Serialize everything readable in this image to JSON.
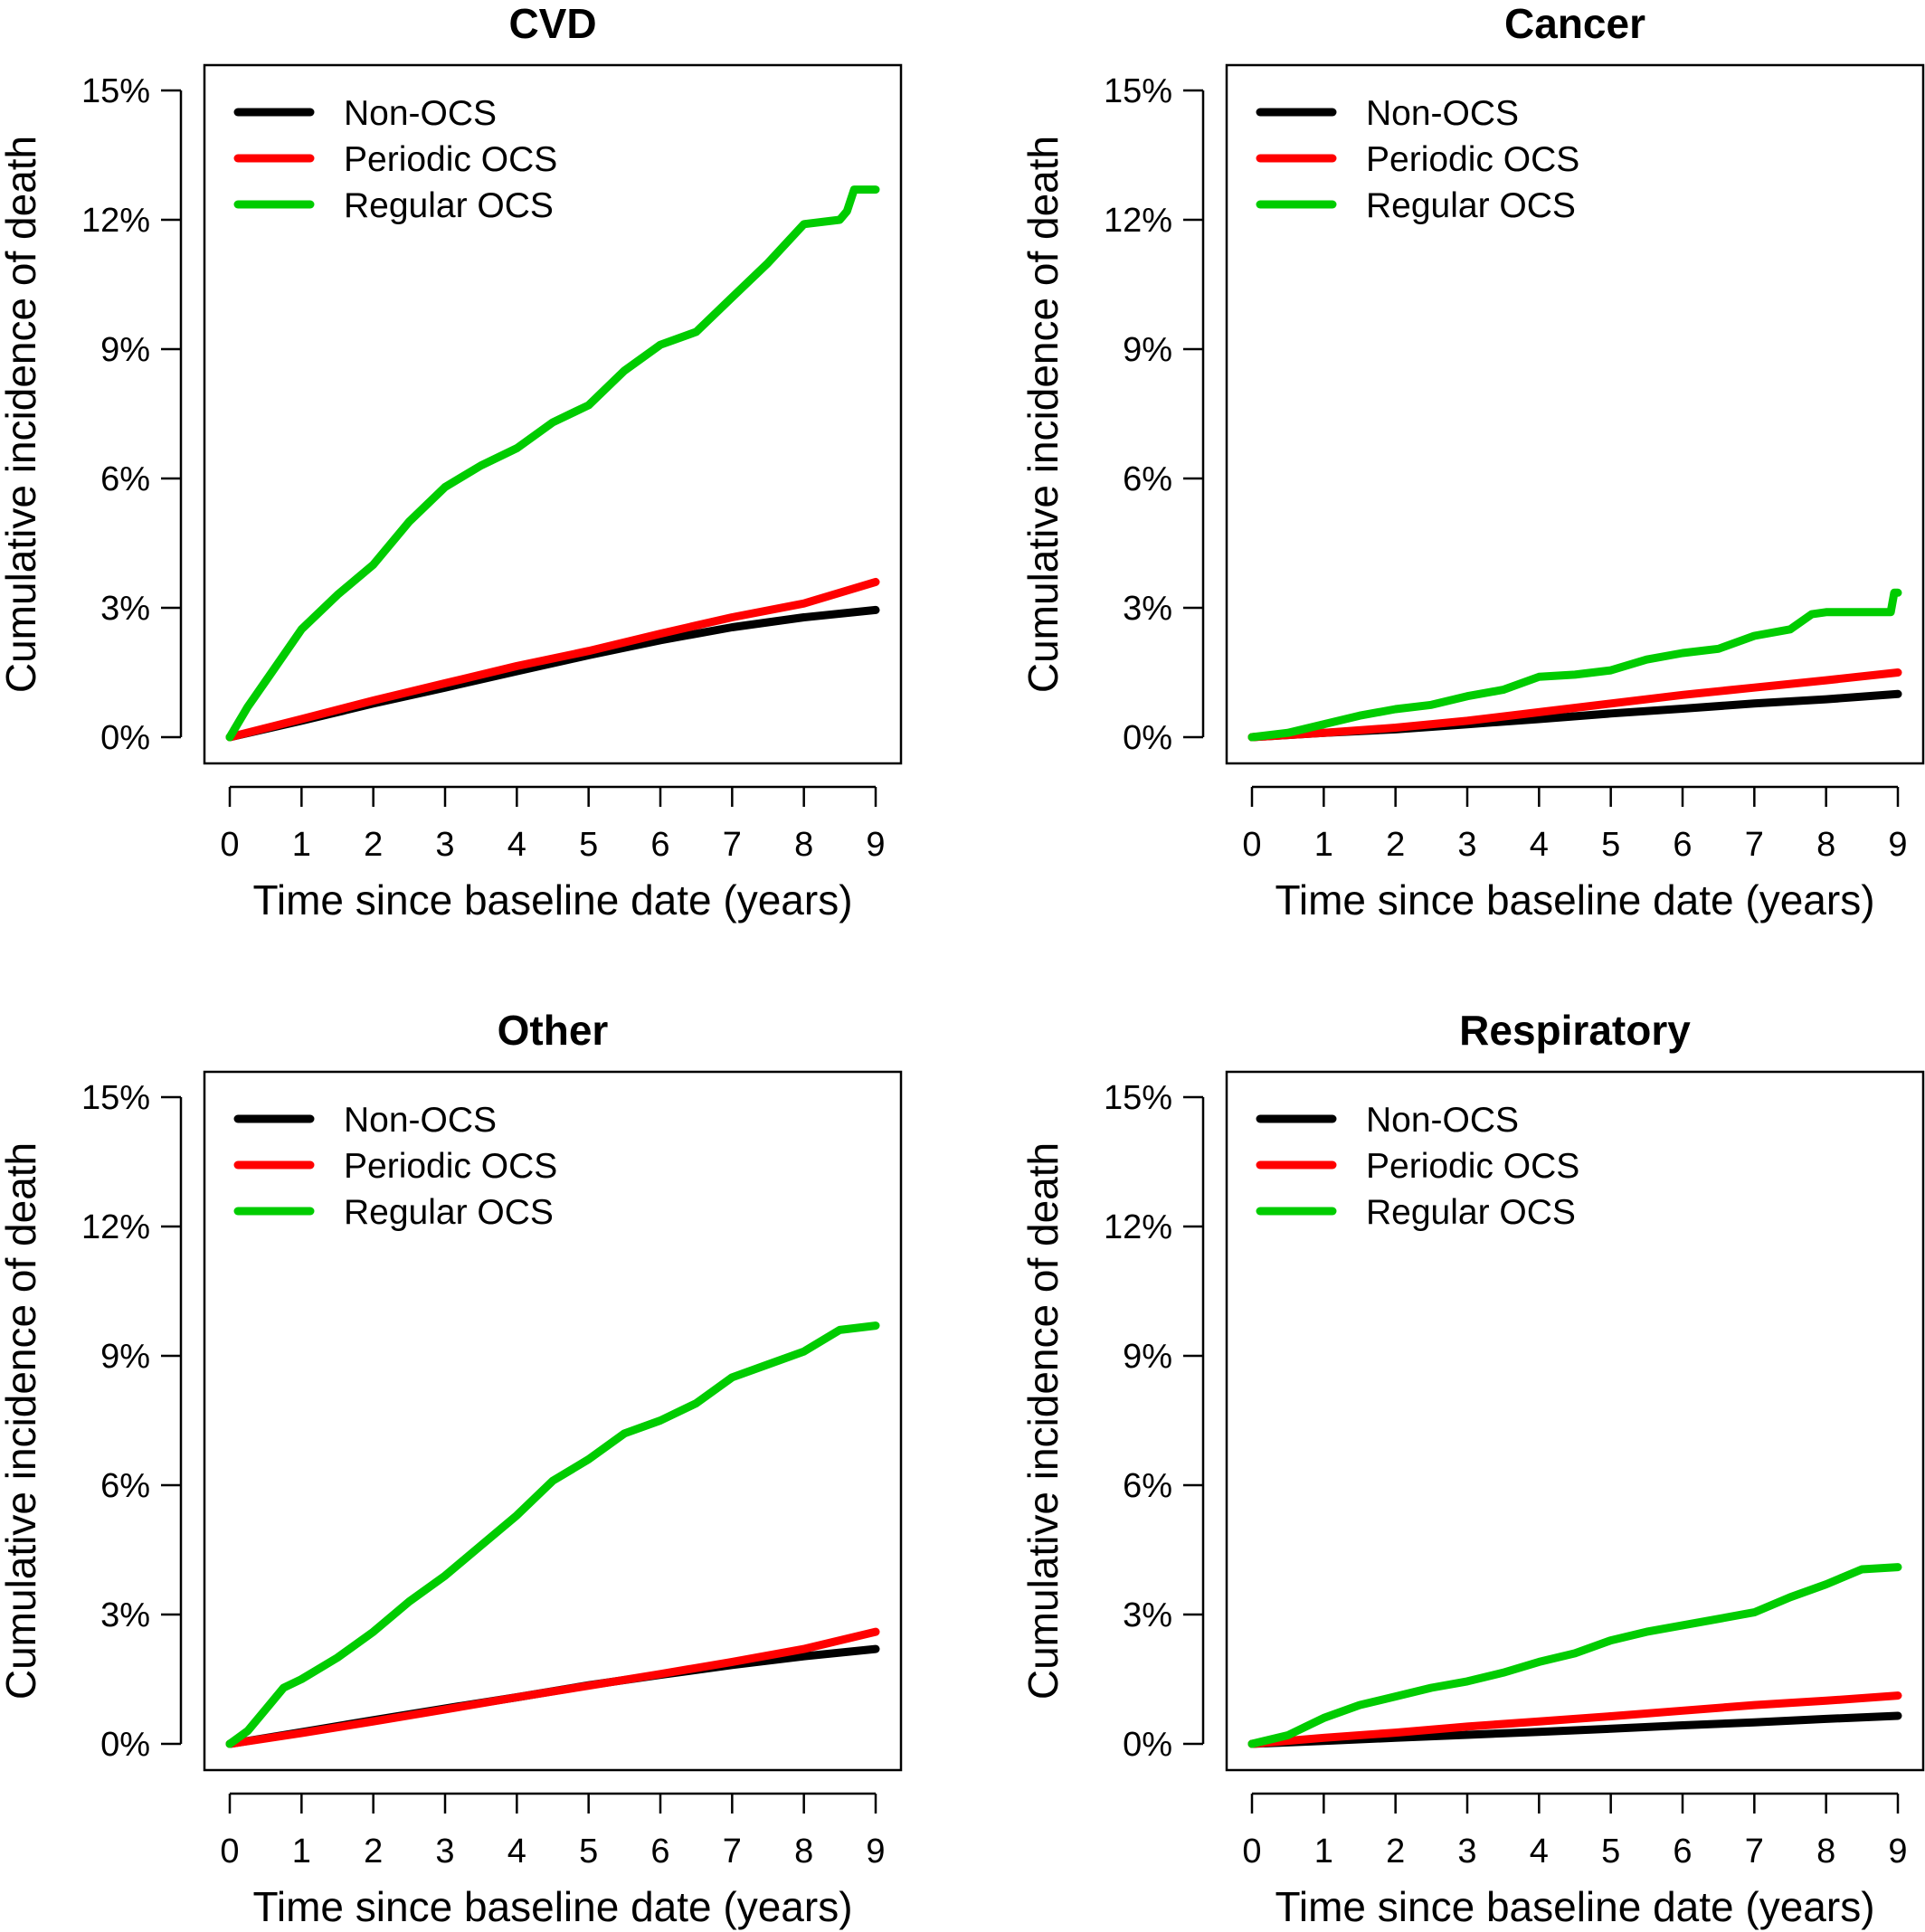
{
  "colors": {
    "Non-OCS": "#000000",
    "Periodic OCS": "#ff0000",
    "Regular OCS": "#00cc00"
  },
  "chart_data": [
    {
      "type": "line",
      "title": "CVD",
      "xlabel": "Time since baseline date (years)",
      "ylabel": "Cumulative incidence of death",
      "xlim": [
        0,
        9
      ],
      "ylim": [
        0,
        15
      ],
      "xticks": [
        "0",
        "1",
        "2",
        "3",
        "4",
        "5",
        "6",
        "7",
        "8",
        "9"
      ],
      "yticks": [
        "0%",
        "3%",
        "6%",
        "9%",
        "12%",
        "15%"
      ],
      "legend_position": "top-left",
      "legend": [
        "Non-OCS",
        "Periodic OCS",
        "Regular OCS"
      ],
      "series": [
        {
          "name": "Non-OCS",
          "x": [
            0,
            1,
            2,
            3,
            4,
            5,
            6,
            7,
            8,
            9
          ],
          "y": [
            0,
            0.38,
            0.78,
            1.15,
            1.53,
            1.9,
            2.25,
            2.55,
            2.78,
            2.95
          ]
        },
        {
          "name": "Periodic OCS",
          "x": [
            0,
            1,
            2,
            3,
            4,
            5,
            6,
            7,
            8,
            9
          ],
          "y": [
            0,
            0.42,
            0.85,
            1.25,
            1.65,
            2.0,
            2.4,
            2.78,
            3.1,
            3.6
          ]
        },
        {
          "name": "Regular OCS",
          "x": [
            0,
            0.25,
            0.5,
            0.75,
            1,
            1.5,
            2,
            2.5,
            3,
            3.5,
            4,
            4.5,
            5,
            5.5,
            6,
            6.5,
            7,
            7.5,
            8,
            8.5,
            8.6,
            8.7,
            9
          ],
          "y": [
            0,
            0.7,
            1.3,
            1.9,
            2.5,
            3.3,
            4.0,
            5.0,
            5.8,
            6.3,
            6.7,
            7.3,
            7.7,
            8.5,
            9.1,
            9.4,
            10.2,
            11.0,
            11.9,
            12.0,
            12.2,
            12.7,
            12.7
          ]
        }
      ]
    },
    {
      "type": "line",
      "title": "Cancer",
      "xlabel": "Time since baseline date (years)",
      "ylabel": "Cumulative incidence of death",
      "xlim": [
        0,
        9
      ],
      "ylim": [
        0,
        15
      ],
      "xticks": [
        "0",
        "1",
        "2",
        "3",
        "4",
        "5",
        "6",
        "7",
        "8",
        "9"
      ],
      "yticks": [
        "0%",
        "3%",
        "6%",
        "9%",
        "12%",
        "15%"
      ],
      "legend_position": "top-left",
      "legend": [
        "Non-OCS",
        "Periodic OCS",
        "Regular OCS"
      ],
      "series": [
        {
          "name": "Non-OCS",
          "x": [
            0,
            1,
            2,
            3,
            4,
            5,
            6,
            7,
            8,
            9
          ],
          "y": [
            0,
            0.1,
            0.18,
            0.3,
            0.42,
            0.55,
            0.66,
            0.78,
            0.88,
            1.0
          ]
        },
        {
          "name": "Periodic OCS",
          "x": [
            0,
            1,
            2,
            3,
            4,
            5,
            6,
            7,
            8,
            9
          ],
          "y": [
            0,
            0.1,
            0.22,
            0.38,
            0.58,
            0.78,
            0.98,
            1.15,
            1.32,
            1.5
          ]
        },
        {
          "name": "Regular OCS",
          "x": [
            0,
            0.5,
            1,
            1.5,
            2,
            2.5,
            3,
            3.5,
            4,
            4.5,
            5,
            5.5,
            6,
            6.5,
            7,
            7.5,
            7.8,
            8,
            8.5,
            8.9,
            8.95,
            9
          ],
          "y": [
            0,
            0.1,
            0.3,
            0.5,
            0.65,
            0.75,
            0.95,
            1.1,
            1.4,
            1.45,
            1.55,
            1.8,
            1.95,
            2.05,
            2.35,
            2.5,
            2.85,
            2.9,
            2.9,
            2.9,
            3.35,
            3.35
          ]
        }
      ]
    },
    {
      "type": "line",
      "title": "Other",
      "xlabel": "Time since baseline date (years)",
      "ylabel": "Cumulative incidence of death",
      "xlim": [
        0,
        9
      ],
      "ylim": [
        0,
        15
      ],
      "xticks": [
        "0",
        "1",
        "2",
        "3",
        "4",
        "5",
        "6",
        "7",
        "8",
        "9"
      ],
      "yticks": [
        "0%",
        "3%",
        "6%",
        "9%",
        "12%",
        "15%"
      ],
      "legend_position": "top-left",
      "legend": [
        "Non-OCS",
        "Periodic OCS",
        "Regular OCS"
      ],
      "series": [
        {
          "name": "Non-OCS",
          "x": [
            0,
            1,
            2,
            3,
            4,
            5,
            6,
            7,
            8,
            9
          ],
          "y": [
            0,
            0.27,
            0.55,
            0.82,
            1.08,
            1.36,
            1.6,
            1.83,
            2.03,
            2.2
          ]
        },
        {
          "name": "Periodic OCS",
          "x": [
            0,
            1,
            2,
            3,
            4,
            5,
            6,
            7,
            8,
            9
          ],
          "y": [
            0,
            0.25,
            0.52,
            0.8,
            1.08,
            1.35,
            1.62,
            1.9,
            2.2,
            2.6
          ]
        },
        {
          "name": "Regular OCS",
          "x": [
            0,
            0.25,
            0.5,
            0.75,
            1,
            1.5,
            2,
            2.5,
            3,
            3.5,
            4,
            4.5,
            5,
            5.5,
            6,
            6.5,
            7,
            7.5,
            8,
            8.5,
            9
          ],
          "y": [
            0,
            0.3,
            0.8,
            1.3,
            1.5,
            2.0,
            2.6,
            3.3,
            3.9,
            4.6,
            5.3,
            6.1,
            6.6,
            7.2,
            7.5,
            7.9,
            8.5,
            8.8,
            9.1,
            9.6,
            9.7
          ]
        }
      ]
    },
    {
      "type": "line",
      "title": "Respiratory",
      "xlabel": "Time since baseline date (years)",
      "ylabel": "Cumulative incidence of death",
      "xlim": [
        0,
        9
      ],
      "ylim": [
        0,
        15
      ],
      "xticks": [
        "0",
        "1",
        "2",
        "3",
        "4",
        "5",
        "6",
        "7",
        "8",
        "9"
      ],
      "yticks": [
        "0%",
        "3%",
        "6%",
        "9%",
        "12%",
        "15%"
      ],
      "legend_position": "top-left",
      "legend": [
        "Non-OCS",
        "Periodic OCS",
        "Regular OCS"
      ],
      "series": [
        {
          "name": "Non-OCS",
          "x": [
            0,
            1,
            2,
            3,
            4,
            5,
            6,
            7,
            8,
            9
          ],
          "y": [
            0,
            0.07,
            0.14,
            0.21,
            0.28,
            0.35,
            0.43,
            0.5,
            0.58,
            0.65
          ]
        },
        {
          "name": "Periodic OCS",
          "x": [
            0,
            1,
            2,
            3,
            4,
            5,
            6,
            7,
            8,
            9
          ],
          "y": [
            0,
            0.14,
            0.26,
            0.4,
            0.52,
            0.64,
            0.77,
            0.9,
            1.0,
            1.12
          ]
        },
        {
          "name": "Regular OCS",
          "x": [
            0,
            0.5,
            1,
            1.5,
            2,
            2.5,
            3,
            3.5,
            4,
            4.5,
            5,
            5.5,
            6,
            6.5,
            7,
            7.5,
            8,
            8.5,
            9
          ],
          "y": [
            0,
            0.2,
            0.6,
            0.9,
            1.1,
            1.3,
            1.45,
            1.65,
            1.9,
            2.1,
            2.4,
            2.6,
            2.75,
            2.9,
            3.05,
            3.4,
            3.7,
            4.05,
            4.1
          ]
        }
      ]
    }
  ]
}
